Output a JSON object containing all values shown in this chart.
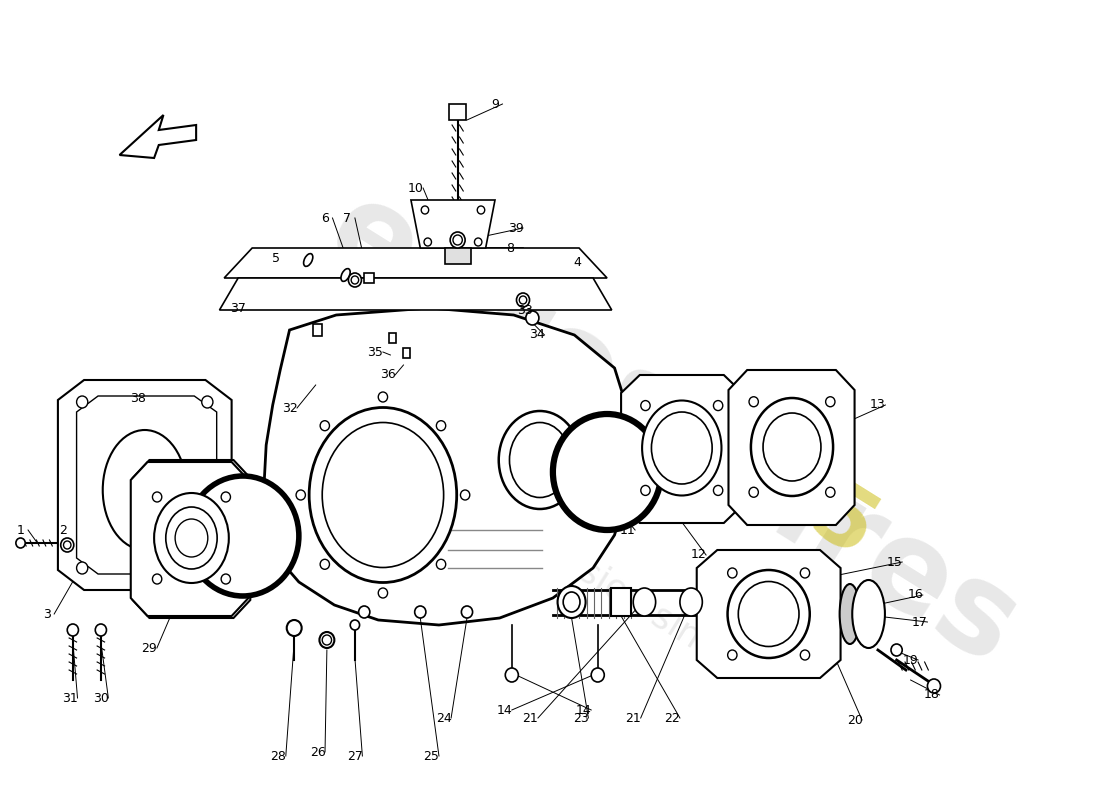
{
  "background_color": "#ffffff",
  "line_color": "#000000",
  "watermark_color": "#cccccc",
  "gold_color": "#c8b400",
  "label_fontsize": 9,
  "lw": 1.2
}
